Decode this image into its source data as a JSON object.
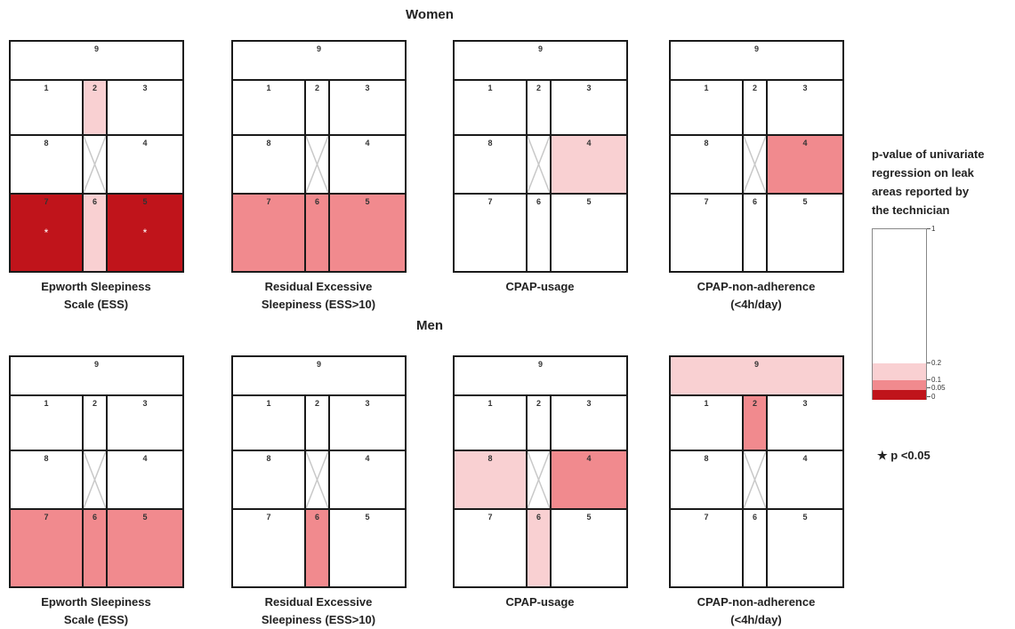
{
  "headings": {
    "women": "Women",
    "men": "Men"
  },
  "region_labels": [
    "1",
    "2",
    "3",
    "4",
    "5",
    "6",
    "7",
    "8",
    "9"
  ],
  "colors": {
    "none": "#ffffff",
    "p_lt_0_2": "#f9d0d2",
    "p_lt_0_1": "#f18a8e",
    "p_lt_0_05": "#c0141b"
  },
  "significance_star": "*",
  "groups": [
    {
      "name": "Women",
      "panels": [
        {
          "caption": [
            "Epworth Sleepiness",
            "Scale (ESS)"
          ],
          "fills": {
            "2": "p_lt_0_2",
            "6": "p_lt_0_2",
            "5": "p_lt_0_05",
            "7": "p_lt_0_05"
          },
          "stars": [
            "7",
            "5"
          ]
        },
        {
          "caption": [
            "Residual Excessive",
            "Sleepiness (ESS>10)"
          ],
          "fills": {
            "5": "p_lt_0_1",
            "6": "p_lt_0_1",
            "7": "p_lt_0_1"
          },
          "stars": []
        },
        {
          "caption": [
            "CPAP-usage"
          ],
          "fills": {
            "4": "p_lt_0_2"
          },
          "stars": []
        },
        {
          "caption": [
            "CPAP-non-adherence",
            "(<4h/day)"
          ],
          "fills": {
            "4": "p_lt_0_1"
          },
          "stars": []
        }
      ]
    },
    {
      "name": "Men",
      "panels": [
        {
          "caption": [
            "Epworth Sleepiness",
            "Scale (ESS)"
          ],
          "fills": {
            "5": "p_lt_0_1",
            "6": "p_lt_0_1",
            "7": "p_lt_0_1"
          },
          "stars": []
        },
        {
          "caption": [
            "Residual Excessive",
            "Sleepiness (ESS>10)"
          ],
          "fills": {
            "6": "p_lt_0_1"
          },
          "stars": []
        },
        {
          "caption": [
            "CPAP-usage"
          ],
          "fills": {
            "8": "p_lt_0_2",
            "4": "p_lt_0_1",
            "6": "p_lt_0_2"
          },
          "stars": []
        },
        {
          "caption": [
            "CPAP-non-adherence",
            "(<4h/day)"
          ],
          "fills": {
            "9": "p_lt_0_2",
            "2": "p_lt_0_1"
          },
          "stars": []
        }
      ]
    }
  ],
  "legend": {
    "title": [
      "p-value of univariate",
      "regression on leak",
      "areas reported by",
      "the technician"
    ],
    "ticks": [
      "1",
      "0.2",
      "0.1",
      "0.05",
      "0"
    ],
    "star_note": "p <0.05"
  }
}
